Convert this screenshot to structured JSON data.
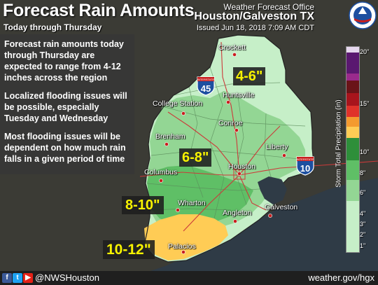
{
  "header": {
    "title": "Forecast Rain Amounts",
    "subtitle": "Today through Thursday",
    "office_line1": "Weather Forecast Office",
    "office_line2": "Houston/Galveston TX",
    "issued": "Issued Jun 18, 2018 7:09 AM CDT"
  },
  "message": {
    "paragraphs": [
      "Forecast rain amounts today through Thursday are expected to range from 4-12 inches across the region",
      "Localized flooding issues will be possible, especially Tuesday and Wednesday",
      "Most flooding issues will be dependent on how much rain falls in a given period of time"
    ]
  },
  "cities": {
    "crockett": "Crockett",
    "huntsville": "Huntsville",
    "college_station": "College Station",
    "conroe": "Conroe",
    "brenham": "Brenham",
    "liberty": "Liberty",
    "columbus": "Columbus",
    "houston": "Houston",
    "wharton": "Wharton",
    "angleton": "Angleton",
    "galveston": "Galveston",
    "palacios": "Palacios"
  },
  "highways": {
    "i45_top": "INTERSTATE",
    "i45_num": "45",
    "i10_top": "INTERSTATE",
    "i10_num": "10"
  },
  "amount_labels": {
    "north": "4-6\"",
    "central": "6-8\"",
    "southwest": "8-10\"",
    "coast": "10-12\""
  },
  "legend": {
    "title": "Storm Total Precipitation (in)",
    "ticks": [
      "20\"",
      "15\"",
      "10\"",
      "8\"",
      "6\"",
      "4\"",
      "3\"",
      "2\"",
      "1\""
    ],
    "colors": {
      "light_green": "#c6efc8",
      "mid_green": "#93d694",
      "green": "#5fbf66",
      "yellow": "#ffcc55",
      "orange": "#f49a2f",
      "red": "#e0322a",
      "dark_red": "#a8141c",
      "magenta": "#9a2a8c",
      "purple": "#5a1870",
      "lavender": "#e6d8ee"
    }
  },
  "footer": {
    "handle": "@NWSHouston",
    "url": "weather.gov/hgx",
    "icons": [
      "facebook-icon",
      "twitter-icon",
      "youtube-icon"
    ]
  },
  "logo": {
    "name": "noaa-nws-logo",
    "text": "NATIONAL WEATHER SERVICE"
  }
}
